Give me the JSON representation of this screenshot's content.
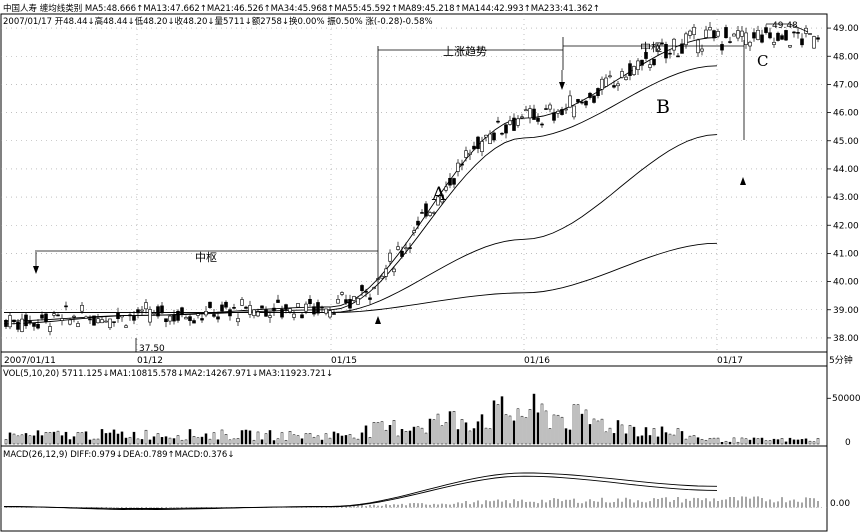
{
  "header": {
    "title_line": "中国人寿 缠均线类别 MA5:48.666↑MA13:47.662↑MA21:46.526↑MA34:45.968↑MA55:45.592↑MA89:45.218↑MA144:42.993↑MA233:41.362↑",
    "quote_line": "2007/01/17 开48.44↓高48.44↓低48.20↓收48.20↓量5711↓额2758↓换0.00% 振0.50% 涨(-0.28)-0.58%"
  },
  "annotations": {
    "left_center": "中枢",
    "uptrend": "上涨趋势",
    "right_center": "中枢",
    "label_a": "A",
    "label_b": "B",
    "label_c": "C",
    "high_value": "49.48",
    "low_value": "37.50"
  },
  "x_axis": {
    "labels": [
      "2007/01/11",
      "01/12",
      "01/15",
      "01/16",
      "01/17"
    ],
    "period": "5分钟"
  },
  "volume_panel": {
    "header": "VOL(5,10,20) 5711.125↓MA1:10815.578↓MA2:14267.971↓MA3:11923.721↓",
    "ticks": [
      "50000",
      "0"
    ]
  },
  "macd_panel": {
    "header": "MACD(26,12,9) DIFF:0.979↓DEA:0.789↑MACD:0.376↓",
    "ticks": [
      "0.00"
    ]
  },
  "colors": {
    "background": "#ffffff",
    "line": "#000000",
    "grid": "#888888"
  },
  "chart_data": [
    {
      "type": "line",
      "title": "",
      "chart": "candlestick",
      "x": [
        "2007/01/11",
        "01/12",
        "01/15",
        "01/16",
        "01/17"
      ],
      "series": [
        {
          "name": "MA5",
          "values": [
            38.6,
            38.8,
            39.1,
            45.8,
            48.67
          ]
        },
        {
          "name": "MA13",
          "values": [
            38.5,
            38.8,
            39.0,
            45.1,
            47.66
          ]
        },
        {
          "name": "MA89",
          "values": [
            38.9,
            38.9,
            38.9,
            41.5,
            45.22
          ]
        },
        {
          "name": "MA233",
          "values": [
            38.9,
            38.9,
            38.9,
            39.6,
            41.36
          ]
        }
      ],
      "ylim": [
        37.5,
        49.5
      ],
      "yticks": [
        "38.00",
        "39.00",
        "40.00",
        "41.00",
        "42.00",
        "43.00",
        "44.00",
        "45.00",
        "46.00",
        "47.00",
        "48.00",
        "49.00"
      ],
      "legend": "top",
      "grid": true
    },
    {
      "type": "bar",
      "title": "",
      "x": [
        "2007/01/11",
        "01/12",
        "01/15",
        "01/16",
        "01/17"
      ],
      "series": [
        {
          "name": "VOL",
          "values": [
            12000,
            14000,
            12000,
            48000,
            5711
          ]
        }
      ],
      "ylim": [
        0,
        70000
      ]
    },
    {
      "type": "line",
      "title": "",
      "x": [
        "2007/01/11",
        "01/12",
        "01/15",
        "01/16",
        "01/17"
      ],
      "series": [
        {
          "name": "DIFF",
          "values": [
            0.05,
            -0.1,
            0.05,
            1.6,
            0.979
          ]
        },
        {
          "name": "DEA",
          "values": [
            0.03,
            -0.05,
            0.03,
            1.45,
            0.789
          ]
        },
        {
          "name": "MACD",
          "values": [
            0.04,
            -0.1,
            0.04,
            0.3,
            0.376
          ]
        }
      ],
      "ylim": [
        -1.0,
        2.2
      ]
    }
  ]
}
